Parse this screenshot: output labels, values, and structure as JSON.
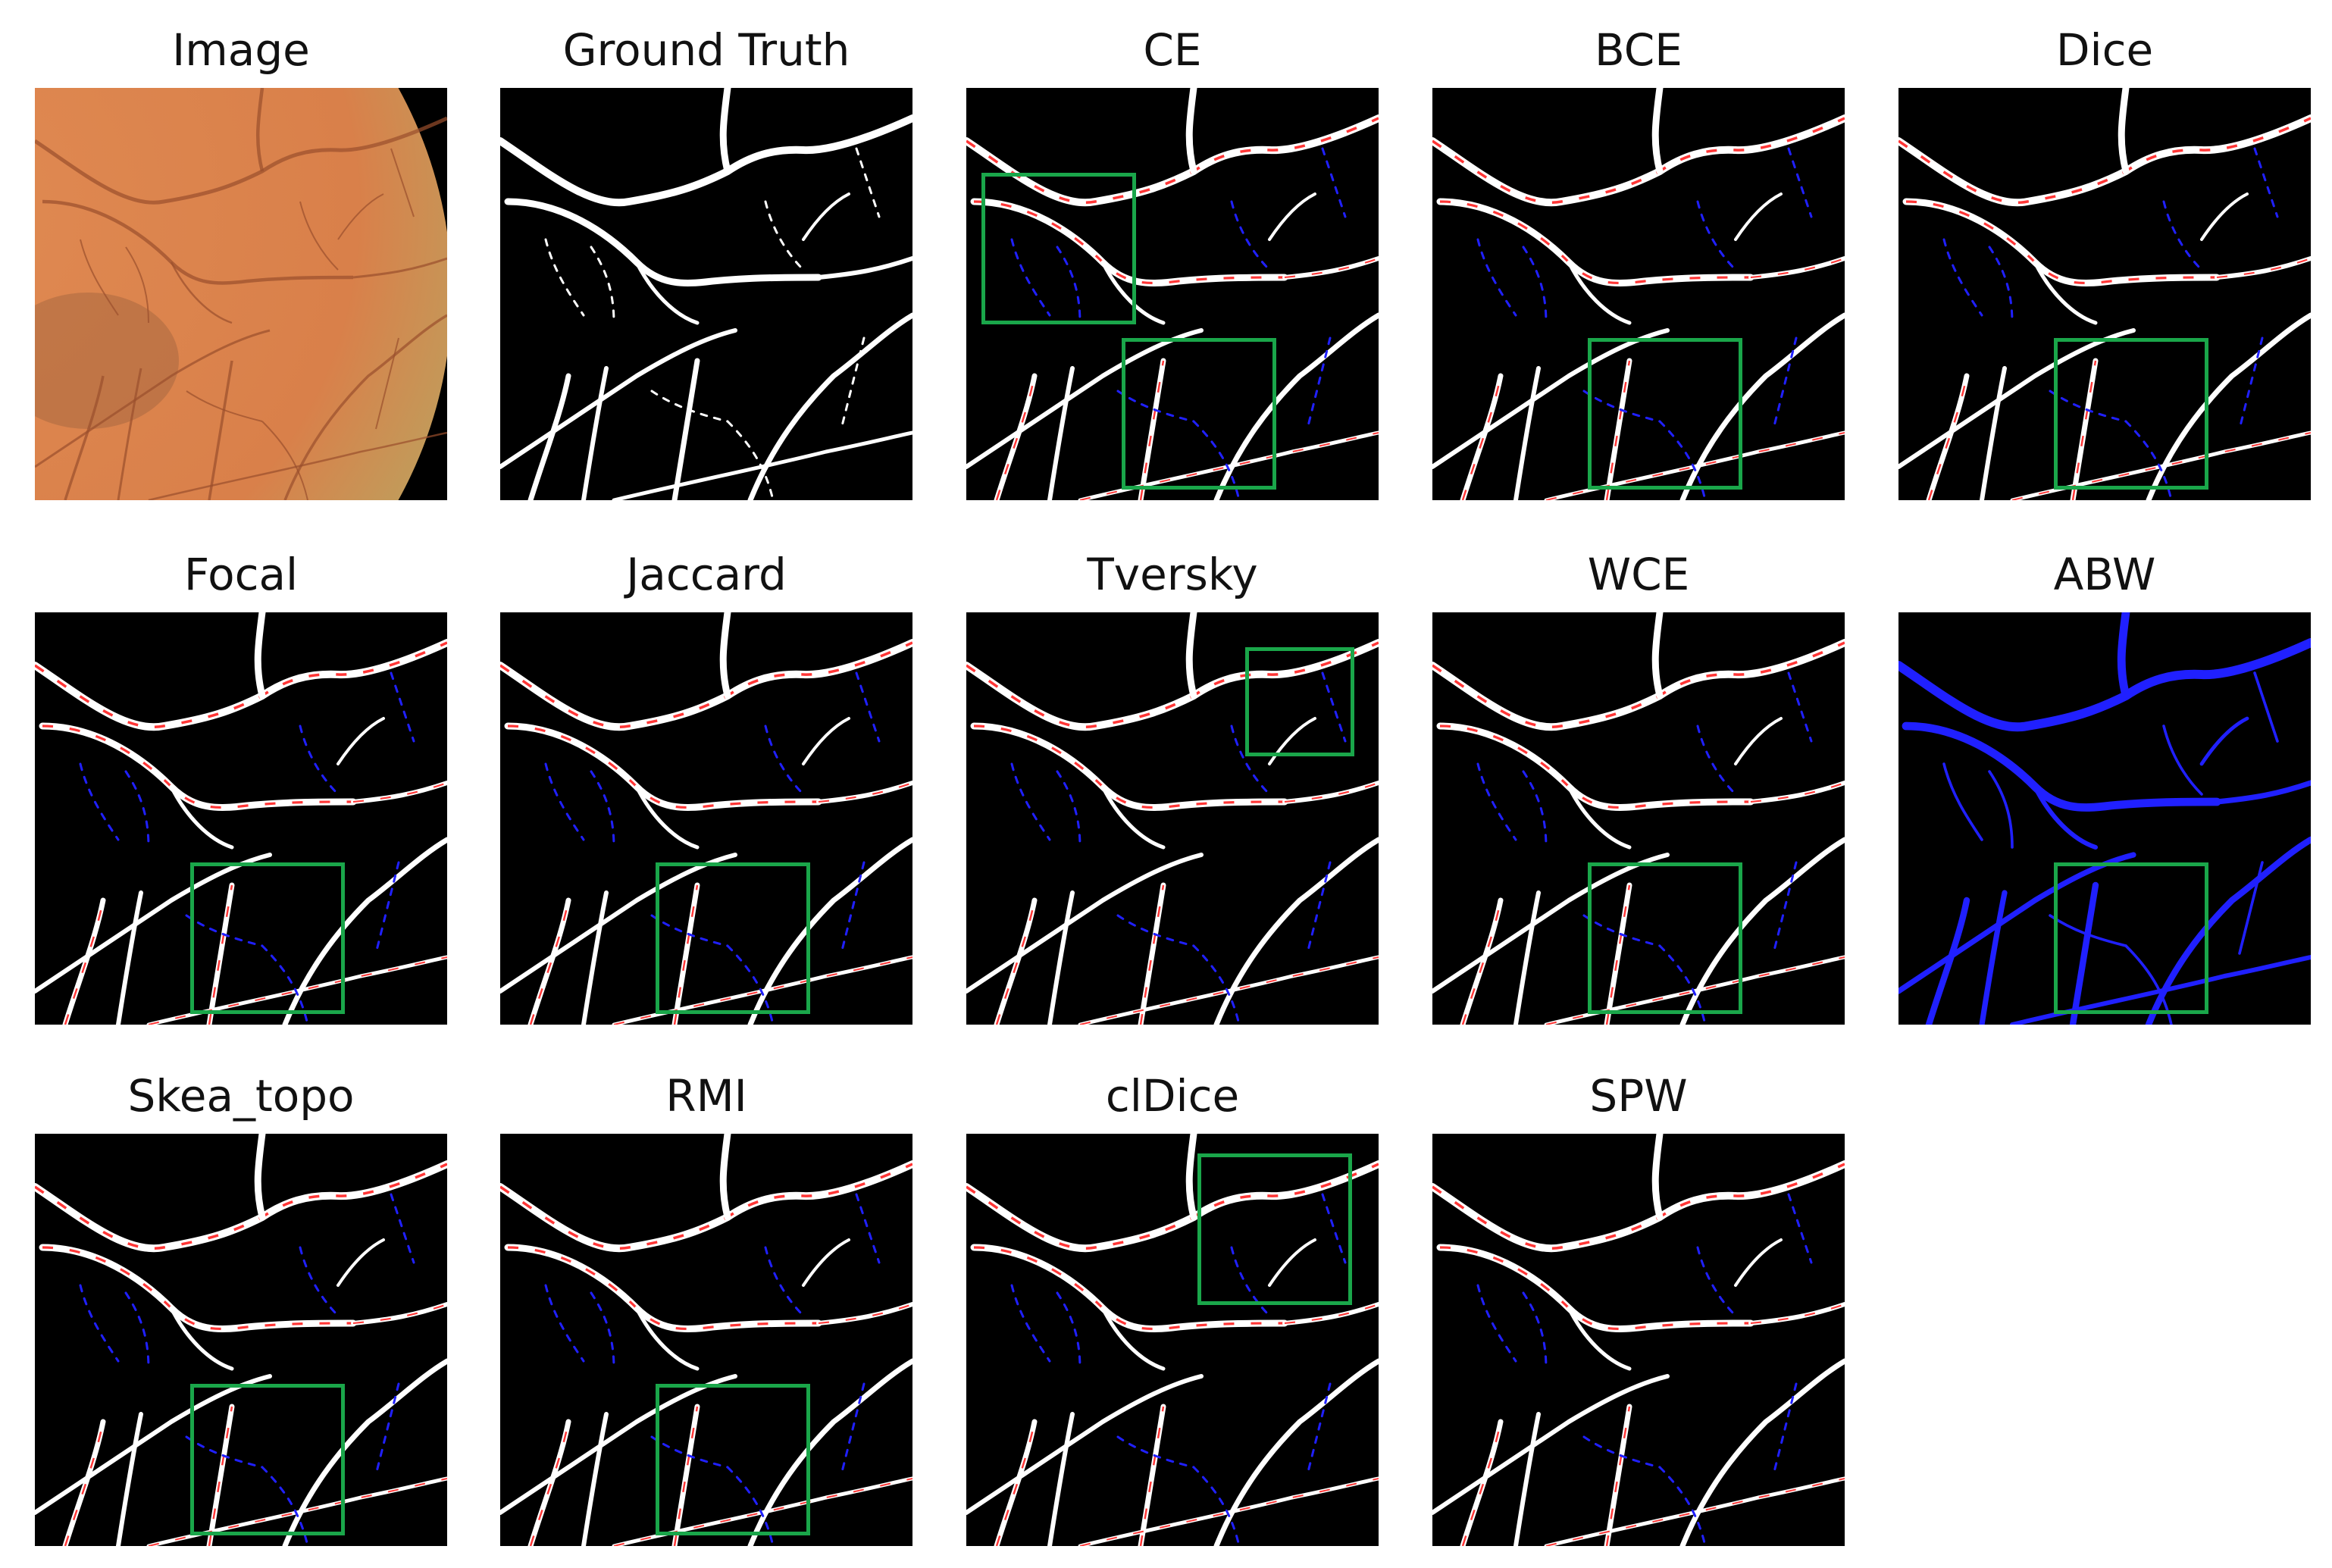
{
  "figure": {
    "highlight_color": "#1aa64a",
    "colors": {
      "background": "#000000",
      "true_positive": "#ffffff",
      "false_positive": "#ff2020",
      "false_negative": "#2020ff",
      "fundus": "#d9804a"
    },
    "panels": [
      {
        "title": "Image",
        "kind": "fundus",
        "boxes": []
      },
      {
        "title": "Ground Truth",
        "kind": "gt",
        "boxes": []
      },
      {
        "title": "CE",
        "kind": "pred",
        "boxes": [
          "left",
          "bottom"
        ]
      },
      {
        "title": "BCE",
        "kind": "pred",
        "boxes": [
          "bottom"
        ]
      },
      {
        "title": "Dice",
        "kind": "pred",
        "boxes": [
          "bottom"
        ]
      },
      {
        "title": "Focal",
        "kind": "pred",
        "boxes": [
          "bottom"
        ]
      },
      {
        "title": "Jaccard",
        "kind": "pred",
        "boxes": [
          "bottom"
        ]
      },
      {
        "title": "Tversky",
        "kind": "pred",
        "boxes": [
          "topright"
        ]
      },
      {
        "title": "WCE",
        "kind": "pred",
        "boxes": [
          "bottom"
        ]
      },
      {
        "title": "ABW",
        "kind": "abw",
        "boxes": [
          "bottom"
        ]
      },
      {
        "title": "Skea_topo",
        "kind": "pred",
        "boxes": [
          "bottom"
        ]
      },
      {
        "title": "RMI",
        "kind": "pred",
        "boxes": [
          "bottom"
        ]
      },
      {
        "title": "clDice",
        "kind": "pred",
        "boxes": [
          "topright2"
        ]
      },
      {
        "title": "SPW",
        "kind": "pred",
        "boxes": []
      }
    ]
  }
}
